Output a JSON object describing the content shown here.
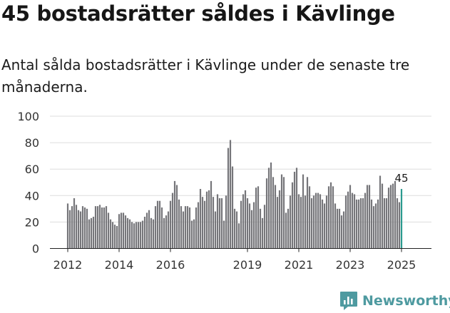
{
  "header": {
    "title": "45 bostadsrätter såldes i Kävlinge",
    "subtitle": "Antal sålda bostadsrätter i Kävlinge under de senaste tre månaderna."
  },
  "brand": {
    "name": "Newsworthy",
    "color": "#4e9aa0"
  },
  "colors": {
    "bar": "#76767a",
    "highlight": "#2b9a8f"
  },
  "chart_data": {
    "type": "bar",
    "title": "45 bostadsrätter såldes i Kävlinge",
    "subtitle": "Antal sålda bostadsrätter i Kävlinge under de senaste tre månaderna.",
    "xlabel": "",
    "ylabel": "",
    "ylim": [
      0,
      100
    ],
    "yticks": [
      0,
      20,
      40,
      60,
      80,
      100
    ],
    "x_start": "2012-01",
    "x_tick_labels": [
      {
        "label": "2012",
        "index": 0
      },
      {
        "label": "2014",
        "index": 24
      },
      {
        "label": "2016",
        "index": 48
      },
      {
        "label": "2019",
        "index": 84
      },
      {
        "label": "2021",
        "index": 108
      },
      {
        "label": "2023",
        "index": 132
      },
      {
        "label": "2025",
        "index": 156
      }
    ],
    "values": [
      34,
      29,
      32,
      38,
      33,
      29,
      28,
      32,
      31,
      30,
      22,
      23,
      24,
      32,
      32,
      33,
      31,
      31,
      32,
      27,
      22,
      20,
      18,
      17,
      26,
      27,
      27,
      25,
      23,
      22,
      20,
      19,
      20,
      20,
      20,
      21,
      24,
      27,
      29,
      23,
      22,
      32,
      36,
      36,
      31,
      23,
      25,
      28,
      36,
      42,
      51,
      48,
      37,
      32,
      28,
      32,
      32,
      31,
      21,
      22,
      31,
      35,
      45,
      39,
      36,
      43,
      44,
      51,
      39,
      28,
      41,
      38,
      38,
      21,
      40,
      76,
      82,
      62,
      30,
      28,
      19,
      36,
      41,
      44,
      38,
      34,
      29,
      35,
      46,
      47,
      30,
      23,
      33,
      53,
      61,
      65,
      54,
      48,
      39,
      44,
      56,
      54,
      27,
      30,
      40,
      50,
      58,
      61,
      41,
      39,
      56,
      40,
      54,
      47,
      38,
      40,
      42,
      42,
      41,
      37,
      34,
      40,
      47,
      50,
      47,
      34,
      30,
      30,
      25,
      28,
      40,
      43,
      48,
      42,
      41,
      37,
      37,
      38,
      38,
      42,
      48,
      48,
      37,
      32,
      34,
      37,
      55,
      49,
      38,
      38,
      46,
      48,
      49,
      51,
      38,
      35,
      45
    ],
    "highlight_index": 156,
    "highlight_label": "45",
    "series": [
      {
        "name": "Sålda bostadsrätter",
        "color": "#76767a"
      }
    ]
  }
}
